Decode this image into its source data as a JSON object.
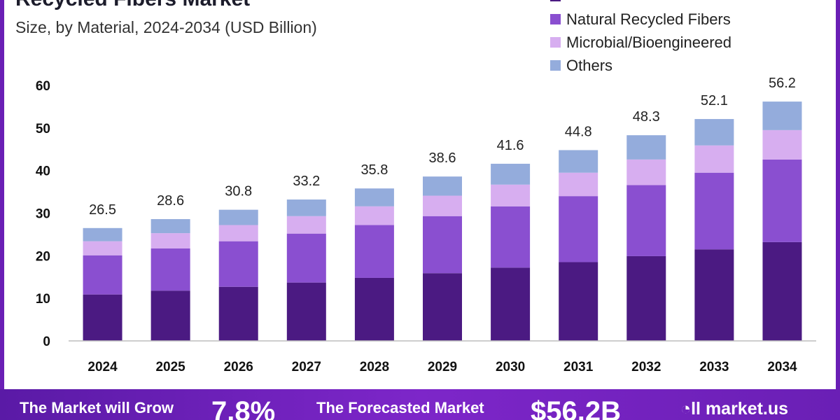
{
  "header": {
    "title": "Recycled Fibers Market",
    "subtitle": "Size, by Material, 2024-2034 (USD Billion)"
  },
  "legend": {
    "items": [
      {
        "label": "",
        "color": "#4b1a82"
      },
      {
        "label": "Natural Recycled Fibers",
        "color": "#8a4fd0"
      },
      {
        "label": "Microbial/Bioengineered",
        "color": "#d7aef0"
      },
      {
        "label": "Others",
        "color": "#94acdc"
      }
    ]
  },
  "chart_data": {
    "type": "bar",
    "stacked": true,
    "categories": [
      "2024",
      "2025",
      "2026",
      "2027",
      "2028",
      "2029",
      "2030",
      "2031",
      "2032",
      "2033",
      "2034"
    ],
    "series": [
      {
        "name": "",
        "color": "#4b1a82",
        "values": [
          10.9,
          11.8,
          12.7,
          13.7,
          14.8,
          15.9,
          17.2,
          18.5,
          19.9,
          21.5,
          23.2
        ]
      },
      {
        "name": "Natural Recycled Fibers",
        "color": "#8a4fd0",
        "values": [
          9.2,
          9.9,
          10.7,
          11.5,
          12.4,
          13.4,
          14.4,
          15.5,
          16.7,
          18.0,
          19.4
        ]
      },
      {
        "name": "Microbial/Bioengineered",
        "color": "#d7aef0",
        "values": [
          3.3,
          3.6,
          3.8,
          4.1,
          4.4,
          4.8,
          5.1,
          5.5,
          6.0,
          6.4,
          6.9
        ]
      },
      {
        "name": "Others",
        "color": "#94acdc",
        "values": [
          3.1,
          3.3,
          3.6,
          3.9,
          4.2,
          4.5,
          4.9,
          5.3,
          5.7,
          6.2,
          6.7
        ]
      }
    ],
    "totals": [
      "26.5",
      "28.6",
      "30.8",
      "33.2",
      "35.8",
      "38.6",
      "41.6",
      "44.8",
      "48.3",
      "52.1",
      "56.2"
    ],
    "y_ticks": [
      "0",
      "10",
      "20",
      "30",
      "40",
      "50",
      "60"
    ],
    "ylim": [
      0,
      60
    ],
    "grid": false,
    "legend_position": "top-right"
  },
  "banner": {
    "text1": "The Market will Grow",
    "stat1": "7.8%",
    "text2": "The Forecasted Market",
    "stat2": "$56.2B",
    "logo_text": "market.us"
  }
}
